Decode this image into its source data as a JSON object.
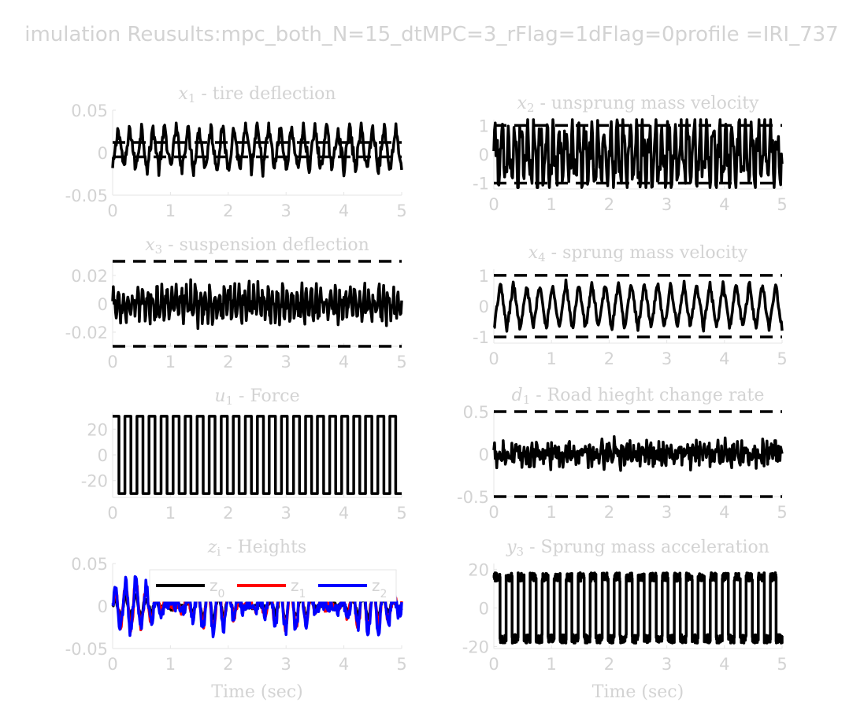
{
  "figure": {
    "suptitle": "imulation Reusults:mpc_both_N=15_dtMPC=3_rFlag=1dFlag=0profile =IRI_737"
  },
  "colors": {
    "text": "#d3d3d3",
    "axis": "#e6e6e6",
    "line": "#000000",
    "z0": "#000000",
    "z1": "#ff0000",
    "z2": "#0000ff"
  },
  "chart_data": [
    {
      "id": "x1",
      "type": "line",
      "title_italic": "x",
      "title_sub": "1",
      "title_rest": " - tire deflection",
      "xlabel": "",
      "ylabel": "",
      "xlim": [
        0,
        5
      ],
      "ylim": [
        -0.05,
        0.05
      ],
      "xticks": [
        0,
        1,
        2,
        3,
        4,
        5
      ],
      "yticks": [
        -0.05,
        0,
        0.05
      ],
      "ytick_labels": [
        "-0.05",
        "0",
        "0.05"
      ],
      "bounds": [
        0.012,
        -0.005
      ],
      "series": [
        {
          "color": "#000000",
          "pattern": "tri",
          "amp": 0.025,
          "offset": 0.005,
          "cycles": 25,
          "jitter": 0.008,
          "values_range": [
            -0.035,
            0.035
          ]
        }
      ]
    },
    {
      "id": "x2",
      "type": "line",
      "title_italic": "x",
      "title_sub": "2",
      "title_rest": " - unsprung mass velocity",
      "xlabel": "",
      "ylabel": "",
      "xlim": [
        0,
        5
      ],
      "ylim": [
        -1.2,
        1.2
      ],
      "xticks": [
        0,
        1,
        2,
        3,
        4,
        5
      ],
      "yticks": [
        -1,
        0,
        1
      ],
      "ytick_labels": [
        "-1",
        "0",
        "1"
      ],
      "bounds": [
        1,
        -1
      ],
      "series": [
        {
          "color": "#000000",
          "pattern": "noisy",
          "amp": 0.85,
          "offset": 0,
          "cycles": 45,
          "jitter": 0.4,
          "values_range": [
            -1.15,
            1.2
          ]
        }
      ]
    },
    {
      "id": "x3",
      "type": "line",
      "title_italic": "x",
      "title_sub": "3",
      "title_rest": " - suspension deflection",
      "xlabel": "",
      "ylabel": "",
      "xlim": [
        0,
        5
      ],
      "ylim": [
        -0.03,
        0.03
      ],
      "xticks": [
        0,
        1,
        2,
        3,
        4,
        5
      ],
      "yticks": [
        -0.02,
        0,
        0.02
      ],
      "ytick_labels": [
        "-0.02",
        "0",
        "0.02"
      ],
      "bounds": [
        0.03,
        -0.03
      ],
      "series": [
        {
          "color": "#000000",
          "pattern": "noisy",
          "amp": 0.008,
          "offset": 0,
          "cycles": 60,
          "jitter": 0.006,
          "values_range": [
            -0.028,
            0.022
          ]
        }
      ]
    },
    {
      "id": "x4",
      "type": "line",
      "title_italic": "x",
      "title_sub": "4",
      "title_rest": " - sprung mass velocity",
      "xlabel": "",
      "ylabel": "",
      "xlim": [
        0,
        5
      ],
      "ylim": [
        -1.2,
        1.2
      ],
      "xticks": [
        0,
        1,
        2,
        3,
        4,
        5
      ],
      "yticks": [
        -1,
        0,
        1
      ],
      "ytick_labels": [
        "-1",
        "0",
        "1"
      ],
      "bounds": [
        1,
        -1
      ],
      "series": [
        {
          "color": "#000000",
          "pattern": "tri",
          "amp": 0.75,
          "offset": 0,
          "cycles": 22,
          "jitter": 0.12,
          "values_range": [
            -1.1,
            1.2
          ]
        }
      ]
    },
    {
      "id": "u1",
      "type": "line",
      "title_italic": "u",
      "title_sub": "1",
      "title_rest": " - Force",
      "xlabel": "",
      "ylabel": "",
      "xlim": [
        0,
        5
      ],
      "ylim": [
        -33,
        33
      ],
      "xticks": [
        0,
        1,
        2,
        3,
        4,
        5
      ],
      "yticks": [
        -20,
        0,
        20
      ],
      "ytick_labels": [
        "-20",
        "0",
        "20"
      ],
      "bounds": [],
      "series": [
        {
          "color": "#000000",
          "pattern": "square",
          "amp": 30,
          "offset": 0,
          "cycles": 24,
          "jitter": 0,
          "values_range": [
            -30,
            30
          ]
        }
      ]
    },
    {
      "id": "d1",
      "type": "line",
      "title_italic": "d",
      "title_sub": "1",
      "title_rest": " - Road hieght change rate",
      "xlabel": "",
      "ylabel": "",
      "xlim": [
        0,
        5
      ],
      "ylim": [
        -0.5,
        0.5
      ],
      "xticks": [
        0,
        1,
        2,
        3,
        4,
        5
      ],
      "yticks": [
        -0.5,
        0,
        0.5
      ],
      "ytick_labels": [
        "-0.5",
        "0",
        "0.5"
      ],
      "bounds": [
        0.5,
        -0.5
      ],
      "series": [
        {
          "color": "#000000",
          "pattern": "noisy",
          "amp": 0.06,
          "offset": 0,
          "cycles": 70,
          "jitter": 0.12,
          "values_range": [
            -0.32,
            0.36
          ]
        }
      ]
    },
    {
      "id": "zi",
      "type": "line",
      "title_italic": "z",
      "title_sub": "i",
      "title_rest": " - Heights",
      "xlabel": "Time (sec)",
      "ylabel": "",
      "xlim": [
        0,
        5
      ],
      "ylim": [
        -0.05,
        0.05
      ],
      "xticks": [
        0,
        1,
        2,
        3,
        4,
        5
      ],
      "yticks": [
        -0.05,
        0,
        0.05
      ],
      "ytick_labels": [
        "-0.05",
        "0",
        "0.05"
      ],
      "bounds": [],
      "legend": {
        "placement": "top",
        "entries": [
          {
            "label": "z",
            "sub": "0",
            "color": "#000000"
          },
          {
            "label": "z",
            "sub": "1",
            "color": "#ff0000"
          },
          {
            "label": "z",
            "sub": "2",
            "color": "#0000ff"
          }
        ]
      },
      "series": [
        {
          "name": "z0",
          "color": "#000000",
          "pattern": "sine",
          "amp": 0.012,
          "offset": 0,
          "cycles": 28,
          "jitter": 0.004,
          "values_range": [
            -0.015,
            0.015
          ]
        },
        {
          "name": "z1",
          "color": "#ff0000",
          "pattern": "sine",
          "amp": 0.025,
          "offset": 0,
          "cycles": 28,
          "jitter": 0.006,
          "values_range": [
            -0.03,
            0.03
          ]
        },
        {
          "name": "z2",
          "color": "#0000ff",
          "pattern": "sine",
          "amp": 0.028,
          "offset": 0,
          "cycles": 28,
          "jitter": 0.008,
          "values_range": [
            -0.045,
            0.045
          ]
        }
      ]
    },
    {
      "id": "y3",
      "type": "line",
      "title_italic": "y",
      "title_sub": "3",
      "title_rest": " - Sprung mass acceleration",
      "xlabel": "Time (sec)",
      "ylabel": "",
      "xlim": [
        0,
        5
      ],
      "ylim": [
        -21,
        23
      ],
      "xticks": [
        0,
        1,
        2,
        3,
        4,
        5
      ],
      "yticks": [
        -20,
        0,
        20
      ],
      "ytick_labels": [
        "-20",
        "0",
        "20"
      ],
      "bounds": [],
      "series": [
        {
          "color": "#000000",
          "pattern": "square",
          "amp": 16,
          "offset": 0,
          "cycles": 24,
          "jitter": 2.2,
          "values_range": [
            -20,
            22
          ]
        }
      ]
    }
  ]
}
